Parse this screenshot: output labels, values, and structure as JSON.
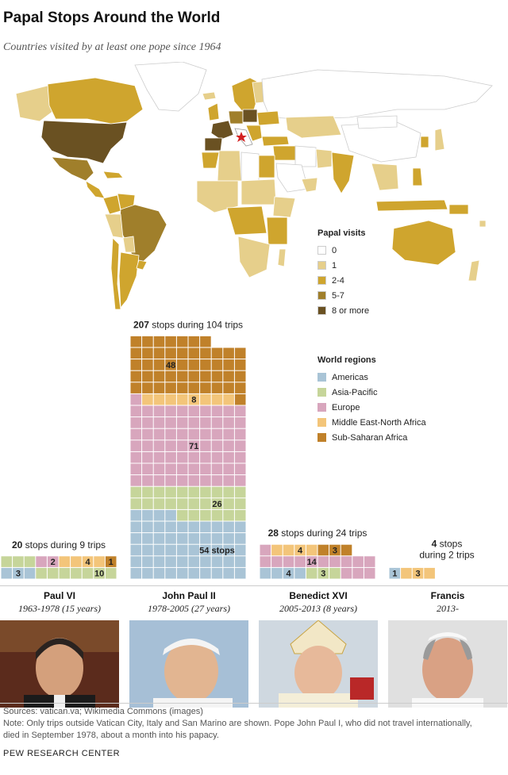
{
  "header": {
    "title": "Papal Stops Around the World",
    "subtitle": "Countries visited by at least one pope since 1964"
  },
  "map_legend": {
    "title": "Papal visits",
    "items": [
      {
        "label": "0",
        "color": "#ffffff"
      },
      {
        "label": "1",
        "color": "#e6cf8b"
      },
      {
        "label": "2-4",
        "color": "#cfa52e"
      },
      {
        "label": "5-7",
        "color": "#a07f2b"
      },
      {
        "label": "8 or more",
        "color": "#6a5122"
      }
    ]
  },
  "region_legend": {
    "title": "World regions",
    "items": [
      {
        "label": "Americas",
        "color": "#a9c4d6"
      },
      {
        "label": "Asia-Pacific",
        "color": "#c6d59a"
      },
      {
        "label": "Europe",
        "color": "#d8a6bd"
      },
      {
        "label": "Middle East-North Africa",
        "color": "#f3c57a"
      },
      {
        "label": "Sub-Saharan Africa",
        "color": "#c0812a"
      }
    ]
  },
  "chart_data": {
    "type": "waffle",
    "regions": [
      "Americas",
      "Asia-Pacific",
      "Europe",
      "Middle East-North Africa",
      "Sub-Saharan Africa"
    ],
    "popes": [
      {
        "name": "Paul VI",
        "years": "1963-1978 (15 years)",
        "summary_bold": "20",
        "summary_text": " stops during 9 trips",
        "total_stops": 20,
        "trips": 9,
        "values": [
          3,
          10,
          2,
          4,
          1
        ],
        "labels": [
          "3",
          "10",
          "2",
          "4",
          "1"
        ]
      },
      {
        "name": "John Paul II",
        "years": "1978-2005 (27 years)",
        "summary_bold": "207",
        "summary_text": " stops during 104 trips",
        "total_stops": 207,
        "trips": 104,
        "values": [
          54,
          26,
          71,
          8,
          48
        ],
        "labels": [
          "54 stops",
          "26",
          "71",
          "8",
          "48"
        ]
      },
      {
        "name": "Benedict XVI",
        "years": "2005-2013 (8 years)",
        "summary_bold": "28",
        "summary_text": " stops during 24 trips",
        "total_stops": 28,
        "trips": 24,
        "values": [
          4,
          3,
          14,
          4,
          3
        ],
        "labels": [
          "4",
          "3",
          "14",
          "4",
          "3"
        ]
      },
      {
        "name": "Francis",
        "years": "2013-",
        "summary_bold": "4",
        "summary_text": " stops",
        "summary_line2": "during 2 trips",
        "total_stops": 4,
        "trips": 2,
        "values": [
          1,
          0,
          0,
          3,
          0
        ],
        "labels": [
          "1",
          "",
          "",
          "3",
          ""
        ]
      }
    ]
  },
  "footer": {
    "sources": "Sources: vatican.va; Wikimedia Commons (images)",
    "note_line1": "Note: Only trips outside Vatican City, Italy and San Marino are shown. Pope John Paul I, who did not travel internationally,",
    "note_line2": "died in September 1978, about a month into his papacy.",
    "org": "PEW RESEARCH CENTER"
  }
}
